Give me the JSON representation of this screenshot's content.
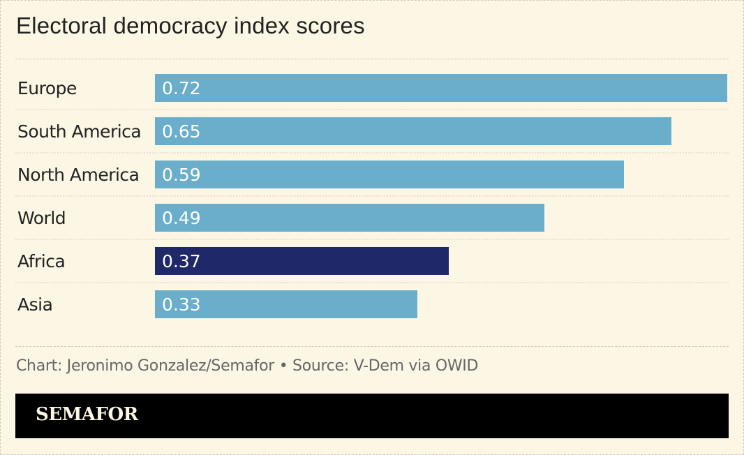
{
  "chart_data": {
    "type": "bar",
    "orientation": "horizontal",
    "title": "Electoral democracy index scores",
    "categories": [
      "Europe",
      "South America",
      "North America",
      "World",
      "Africa",
      "Asia"
    ],
    "values": [
      0.72,
      0.65,
      0.59,
      0.49,
      0.37,
      0.33
    ],
    "data_labels": [
      "0.72",
      "0.65",
      "0.59",
      "0.49",
      "0.37",
      "0.33"
    ],
    "highlight": "Africa",
    "xlim": [
      0,
      0.72
    ],
    "grid": false,
    "colors": {
      "default_bar": "#6aaecb",
      "highlight_bar": "#1f2868",
      "bar_label": "#ffffff",
      "category_label": "#222222",
      "separator": "#d5cfbb"
    }
  },
  "footer": {
    "credit": "Chart: Jeronimo Gonzalez/Semafor • Source: V-Dem via OWID",
    "brand": "SEMAFOR"
  },
  "colors": {
    "background": "#fbf7e4",
    "brand_bar": "#000000",
    "brand_text": "#fbf7e4"
  }
}
